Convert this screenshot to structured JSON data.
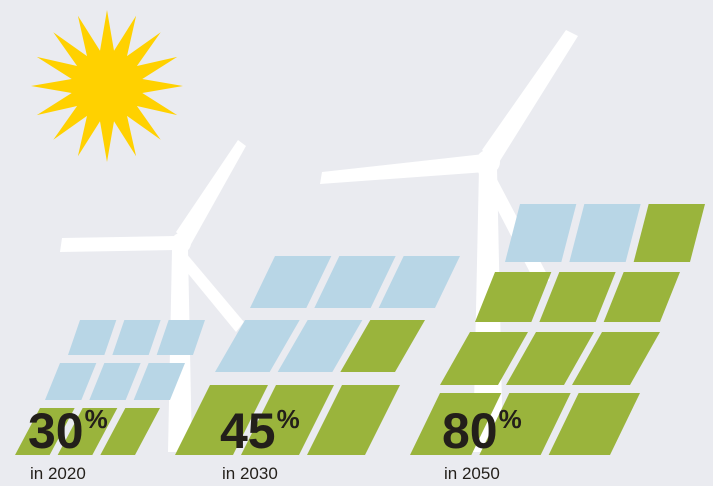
{
  "items": [
    {
      "value": 30,
      "unit": "%",
      "caption": "in 2020"
    },
    {
      "value": 45,
      "unit": "%",
      "caption": "in 2030"
    },
    {
      "value": 80,
      "unit": "%",
      "caption": "in 2050"
    }
  ]
}
